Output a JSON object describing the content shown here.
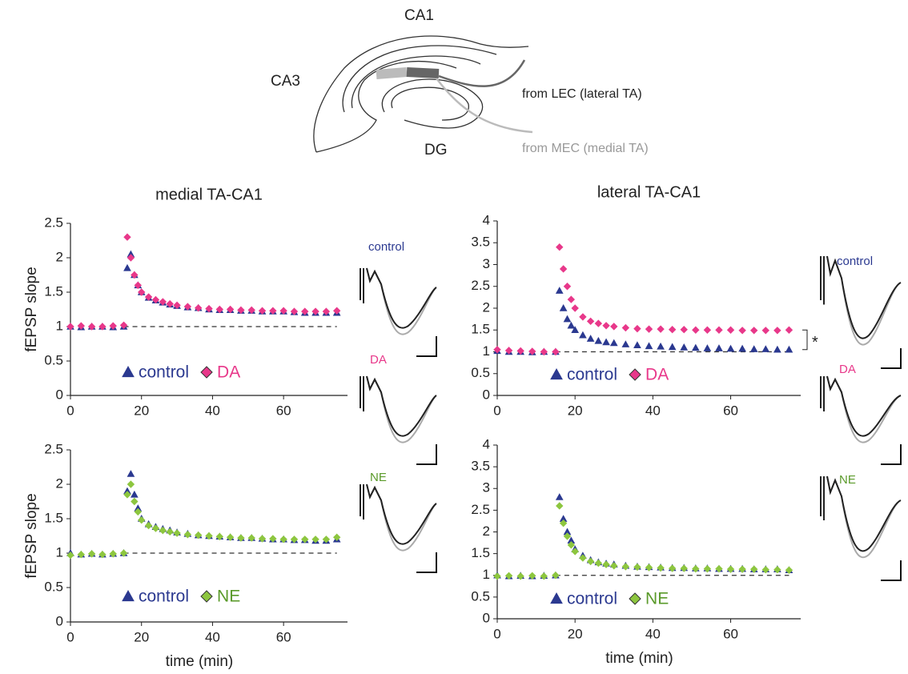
{
  "diagram": {
    "labels": [
      "CA1",
      "CA3",
      "DG",
      "from LEC (lateral TA)",
      "from MEC (medial TA)"
    ]
  },
  "trace_labels": {
    "left": [
      "control",
      "DA",
      "NE"
    ],
    "right": [
      "control",
      "DA",
      "NE"
    ]
  },
  "chart_data": [
    {
      "type": "scatter",
      "title": "medial TA-CA1",
      "ylabel": "fEPSP slope",
      "x": [
        0,
        3,
        6,
        9,
        12,
        15,
        16,
        17,
        18,
        19,
        20,
        22,
        24,
        26,
        28,
        30,
        33,
        36,
        39,
        42,
        45,
        48,
        51,
        54,
        57,
        60,
        63,
        66,
        69,
        72,
        75
      ],
      "series": [
        {
          "name": "control",
          "color": "#2b3990",
          "label_color": "#2b3990",
          "marker": "triangle",
          "values": [
            1.0,
            0.99,
            1.0,
            1.0,
            0.99,
            1.0,
            1.85,
            2.05,
            1.75,
            1.6,
            1.5,
            1.42,
            1.38,
            1.35,
            1.32,
            1.3,
            1.28,
            1.27,
            1.25,
            1.24,
            1.24,
            1.23,
            1.23,
            1.22,
            1.22,
            1.22,
            1.21,
            1.2,
            1.2,
            1.2,
            1.2
          ]
        },
        {
          "name": "DA",
          "color": "#e8388a",
          "label_color": "#e8388a",
          "marker": "diamond",
          "values": [
            1.0,
            1.01,
            1.0,
            1.0,
            1.01,
            1.02,
            2.3,
            2.0,
            1.75,
            1.6,
            1.5,
            1.43,
            1.39,
            1.36,
            1.33,
            1.31,
            1.29,
            1.27,
            1.26,
            1.25,
            1.25,
            1.24,
            1.24,
            1.23,
            1.23,
            1.23,
            1.22,
            1.22,
            1.22,
            1.22,
            1.23
          ]
        }
      ],
      "hline": {
        "value": 1,
        "from": 15,
        "to": 75
      },
      "xlim": [
        0,
        78
      ],
      "xticks": [
        0,
        20,
        40,
        60
      ],
      "ylim": [
        0,
        2.5
      ],
      "yticks": [
        0,
        0.5,
        1,
        1.5,
        2,
        2.5
      ]
    },
    {
      "type": "scatter",
      "title": "lateral TA-CA1",
      "annotation": "*",
      "x": [
        0,
        3,
        6,
        9,
        12,
        15,
        16,
        17,
        18,
        19,
        20,
        22,
        24,
        26,
        28,
        30,
        33,
        36,
        39,
        42,
        45,
        48,
        51,
        54,
        57,
        60,
        63,
        66,
        69,
        72,
        75
      ],
      "series": [
        {
          "name": "control",
          "color": "#2b3990",
          "label_color": "#2b3990",
          "marker": "triangle",
          "values": [
            1.02,
            1.0,
            1.0,
            0.99,
            1.0,
            1.0,
            2.4,
            2.0,
            1.75,
            1.6,
            1.5,
            1.38,
            1.3,
            1.25,
            1.22,
            1.2,
            1.17,
            1.15,
            1.13,
            1.12,
            1.11,
            1.1,
            1.09,
            1.08,
            1.08,
            1.07,
            1.07,
            1.06,
            1.06,
            1.05,
            1.05
          ]
        },
        {
          "name": "DA",
          "color": "#e8388a",
          "label_color": "#e8388a",
          "marker": "diamond",
          "values": [
            1.05,
            1.03,
            1.02,
            1.01,
            1.0,
            1.0,
            3.4,
            2.9,
            2.5,
            2.2,
            2.0,
            1.8,
            1.7,
            1.65,
            1.6,
            1.58,
            1.55,
            1.53,
            1.52,
            1.52,
            1.51,
            1.51,
            1.5,
            1.5,
            1.5,
            1.5,
            1.49,
            1.49,
            1.49,
            1.49,
            1.5
          ]
        }
      ],
      "hline": {
        "value": 1,
        "from": 15,
        "to": 75
      },
      "xlim": [
        0,
        78
      ],
      "xticks": [
        0,
        20,
        40,
        60
      ],
      "ylim": [
        0,
        4
      ],
      "yticks": [
        0,
        0.5,
        1,
        1.5,
        2,
        2.5,
        3,
        3.5,
        4
      ]
    },
    {
      "type": "scatter",
      "ylabel": "fEPSP slope",
      "xlabel": "time (min)",
      "x": [
        0,
        3,
        6,
        9,
        12,
        15,
        16,
        17,
        18,
        19,
        20,
        22,
        24,
        26,
        28,
        30,
        33,
        36,
        39,
        42,
        45,
        48,
        51,
        54,
        57,
        60,
        63,
        66,
        69,
        72,
        75
      ],
      "series": [
        {
          "name": "control",
          "color": "#2b3990",
          "label_color": "#2b3990",
          "marker": "triangle",
          "values": [
            1.0,
            0.98,
            0.99,
            0.98,
            0.99,
            1.0,
            1.9,
            2.15,
            1.85,
            1.65,
            1.5,
            1.42,
            1.38,
            1.35,
            1.33,
            1.3,
            1.28,
            1.26,
            1.25,
            1.24,
            1.23,
            1.22,
            1.22,
            1.21,
            1.2,
            1.2,
            1.19,
            1.19,
            1.18,
            1.18,
            1.2
          ]
        },
        {
          "name": "NE",
          "color": "#8dc63f",
          "label_color": "#5a9a2a",
          "marker": "diamond",
          "values": [
            0.97,
            0.98,
            0.99,
            0.98,
            0.99,
            1.0,
            1.85,
            2.0,
            1.75,
            1.6,
            1.48,
            1.4,
            1.36,
            1.33,
            1.31,
            1.29,
            1.27,
            1.26,
            1.25,
            1.24,
            1.23,
            1.22,
            1.22,
            1.21,
            1.21,
            1.2,
            1.2,
            1.2,
            1.2,
            1.2,
            1.23
          ]
        }
      ],
      "hline": {
        "value": 1,
        "from": 15,
        "to": 75
      },
      "xlim": [
        0,
        78
      ],
      "xticks": [
        0,
        20,
        40,
        60
      ],
      "ylim": [
        0,
        2.5
      ],
      "yticks": [
        0,
        0.5,
        1,
        1.5,
        2,
        2.5
      ]
    },
    {
      "type": "scatter",
      "xlabel": "time (min)",
      "x": [
        0,
        3,
        6,
        9,
        12,
        15,
        16,
        17,
        18,
        19,
        20,
        22,
        24,
        26,
        28,
        30,
        33,
        36,
        39,
        42,
        45,
        48,
        51,
        54,
        57,
        60,
        63,
        66,
        69,
        72,
        75
      ],
      "series": [
        {
          "name": "control",
          "color": "#2b3990",
          "label_color": "#2b3990",
          "marker": "triangle",
          "values": [
            1.0,
            0.98,
            0.99,
            0.98,
            0.99,
            1.0,
            2.8,
            2.3,
            2.0,
            1.8,
            1.6,
            1.45,
            1.35,
            1.3,
            1.27,
            1.25,
            1.22,
            1.2,
            1.19,
            1.18,
            1.17,
            1.17,
            1.16,
            1.16,
            1.15,
            1.15,
            1.15,
            1.14,
            1.14,
            1.14,
            1.12
          ]
        },
        {
          "name": "NE",
          "color": "#8dc63f",
          "label_color": "#5a9a2a",
          "marker": "diamond",
          "values": [
            0.98,
            0.99,
            0.98,
            0.99,
            0.98,
            1.0,
            2.6,
            2.2,
            1.9,
            1.7,
            1.55,
            1.4,
            1.32,
            1.28,
            1.25,
            1.22,
            1.2,
            1.19,
            1.18,
            1.17,
            1.16,
            1.16,
            1.15,
            1.15,
            1.15,
            1.14,
            1.14,
            1.14,
            1.13,
            1.13,
            1.12
          ]
        }
      ],
      "hline": {
        "value": 1,
        "from": 15,
        "to": 75
      },
      "xlim": [
        0,
        78
      ],
      "xticks": [
        0,
        20,
        40,
        60
      ],
      "ylim": [
        0,
        4
      ],
      "yticks": [
        0,
        0.5,
        1,
        1.5,
        2,
        2.5,
        3,
        3.5,
        4
      ]
    }
  ]
}
